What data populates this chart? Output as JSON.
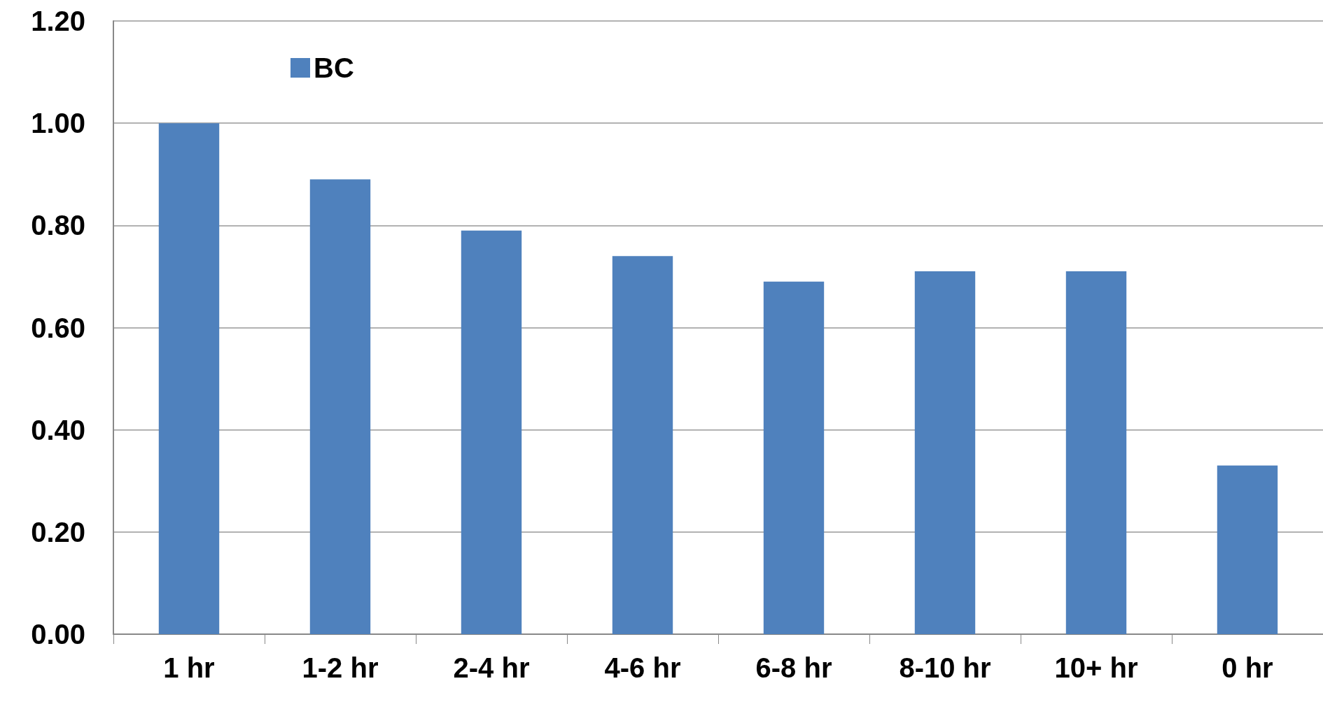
{
  "chart_data": {
    "type": "bar",
    "categories": [
      "1 hr",
      "1-2 hr",
      "2-4 hr",
      "4-6 hr",
      "6-8 hr",
      "8-10 hr",
      "10+ hr",
      "0 hr"
    ],
    "series": [
      {
        "name": "BC",
        "color": "#4f81bd",
        "values": [
          1.0,
          0.89,
          0.79,
          0.74,
          0.69,
          0.71,
          0.71,
          0.33
        ]
      }
    ],
    "ylim": [
      0,
      1.2
    ],
    "yticks": [
      {
        "value": 0,
        "label": "0.00"
      },
      {
        "value": 0.2,
        "label": "0.20"
      },
      {
        "value": 0.4,
        "label": "0.40"
      },
      {
        "value": 0.6,
        "label": "0.60"
      },
      {
        "value": 0.8,
        "label": "0.80"
      },
      {
        "value": 1,
        "label": "1.00"
      },
      {
        "value": 1.2,
        "label": "1.20"
      }
    ],
    "grid": "y",
    "legend": "top left"
  }
}
